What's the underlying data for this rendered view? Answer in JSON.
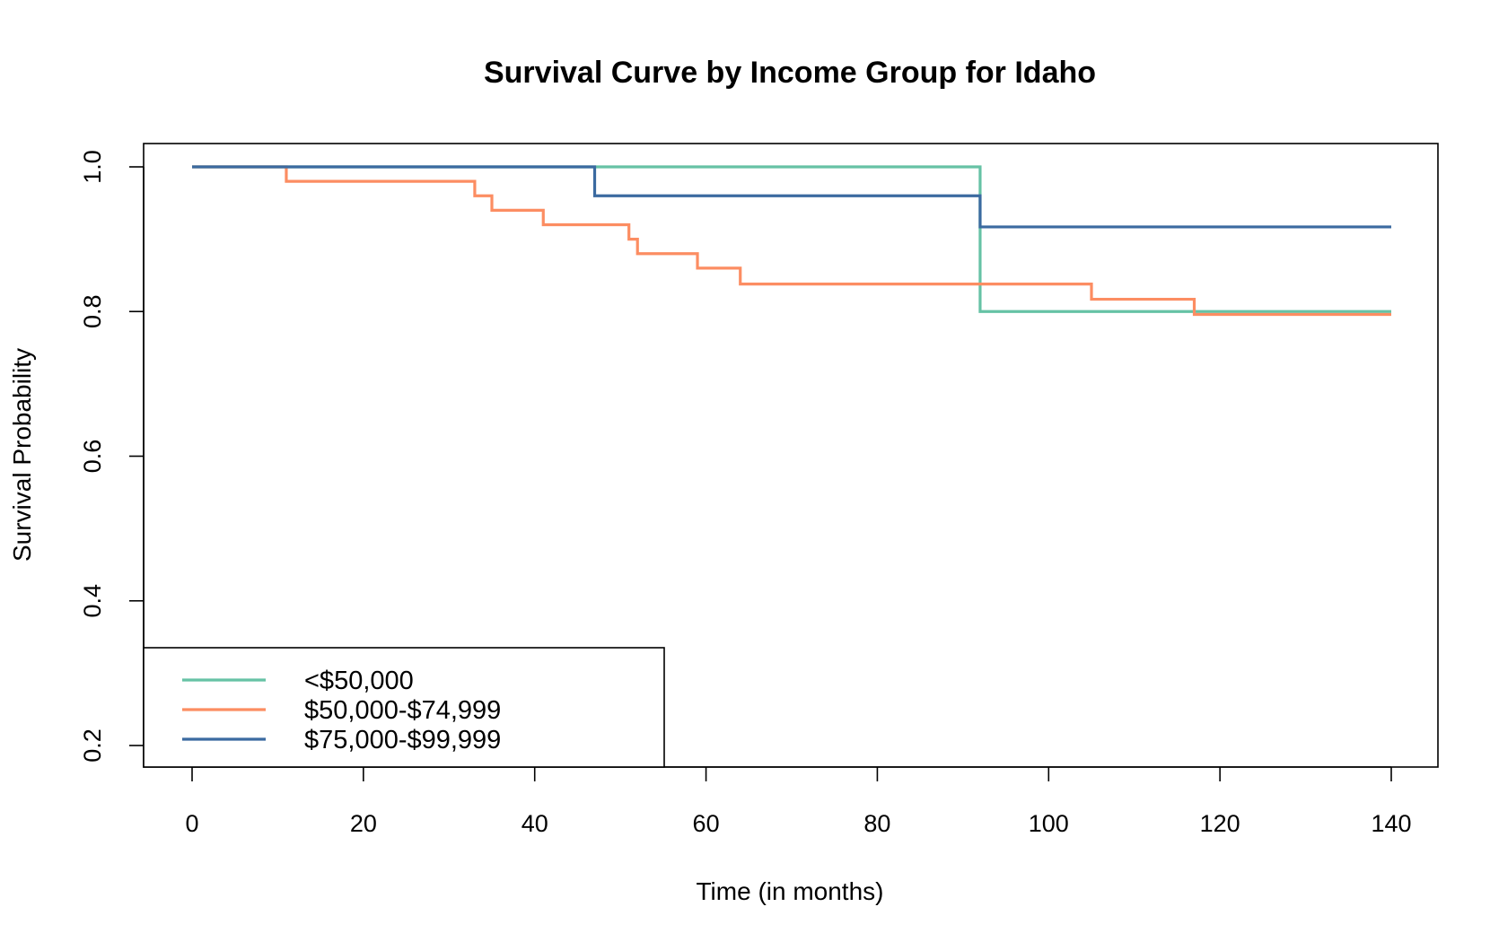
{
  "chart_data": {
    "type": "line",
    "step": true,
    "title": "Survival Curve by Income Group for Idaho",
    "xlabel": "Time (in months)",
    "ylabel": "Survival Probability",
    "xlim": [
      0,
      140
    ],
    "ylim": [
      0.2,
      1.0
    ],
    "xticks": [
      0,
      20,
      40,
      60,
      80,
      100,
      120,
      140
    ],
    "yticks": [
      0.2,
      0.4,
      0.6,
      0.8,
      1.0
    ],
    "ytick_labels": [
      "0.2",
      "0.4",
      "0.6",
      "0.8",
      "1.0"
    ],
    "grid": false,
    "legend_position": "bottom-left",
    "series": [
      {
        "name": "<$50,000",
        "color": "#66c2a5",
        "x": [
          0,
          92,
          140
        ],
        "y": [
          1.0,
          0.8,
          0.8
        ]
      },
      {
        "name": "$50,000-$74,999",
        "color": "#fc8d62",
        "x": [
          0,
          11,
          33,
          35,
          41,
          51,
          52,
          59,
          64,
          105,
          117,
          140
        ],
        "y": [
          1.0,
          0.98,
          0.96,
          0.94,
          0.92,
          0.9,
          0.88,
          0.86,
          0.838,
          0.817,
          0.796,
          0.796
        ]
      },
      {
        "name": "$75,000-$99,999",
        "color": "#3b6aa0",
        "x": [
          0,
          47,
          92,
          140
        ],
        "y": [
          1.0,
          0.96,
          0.917,
          0.917
        ]
      }
    ]
  }
}
